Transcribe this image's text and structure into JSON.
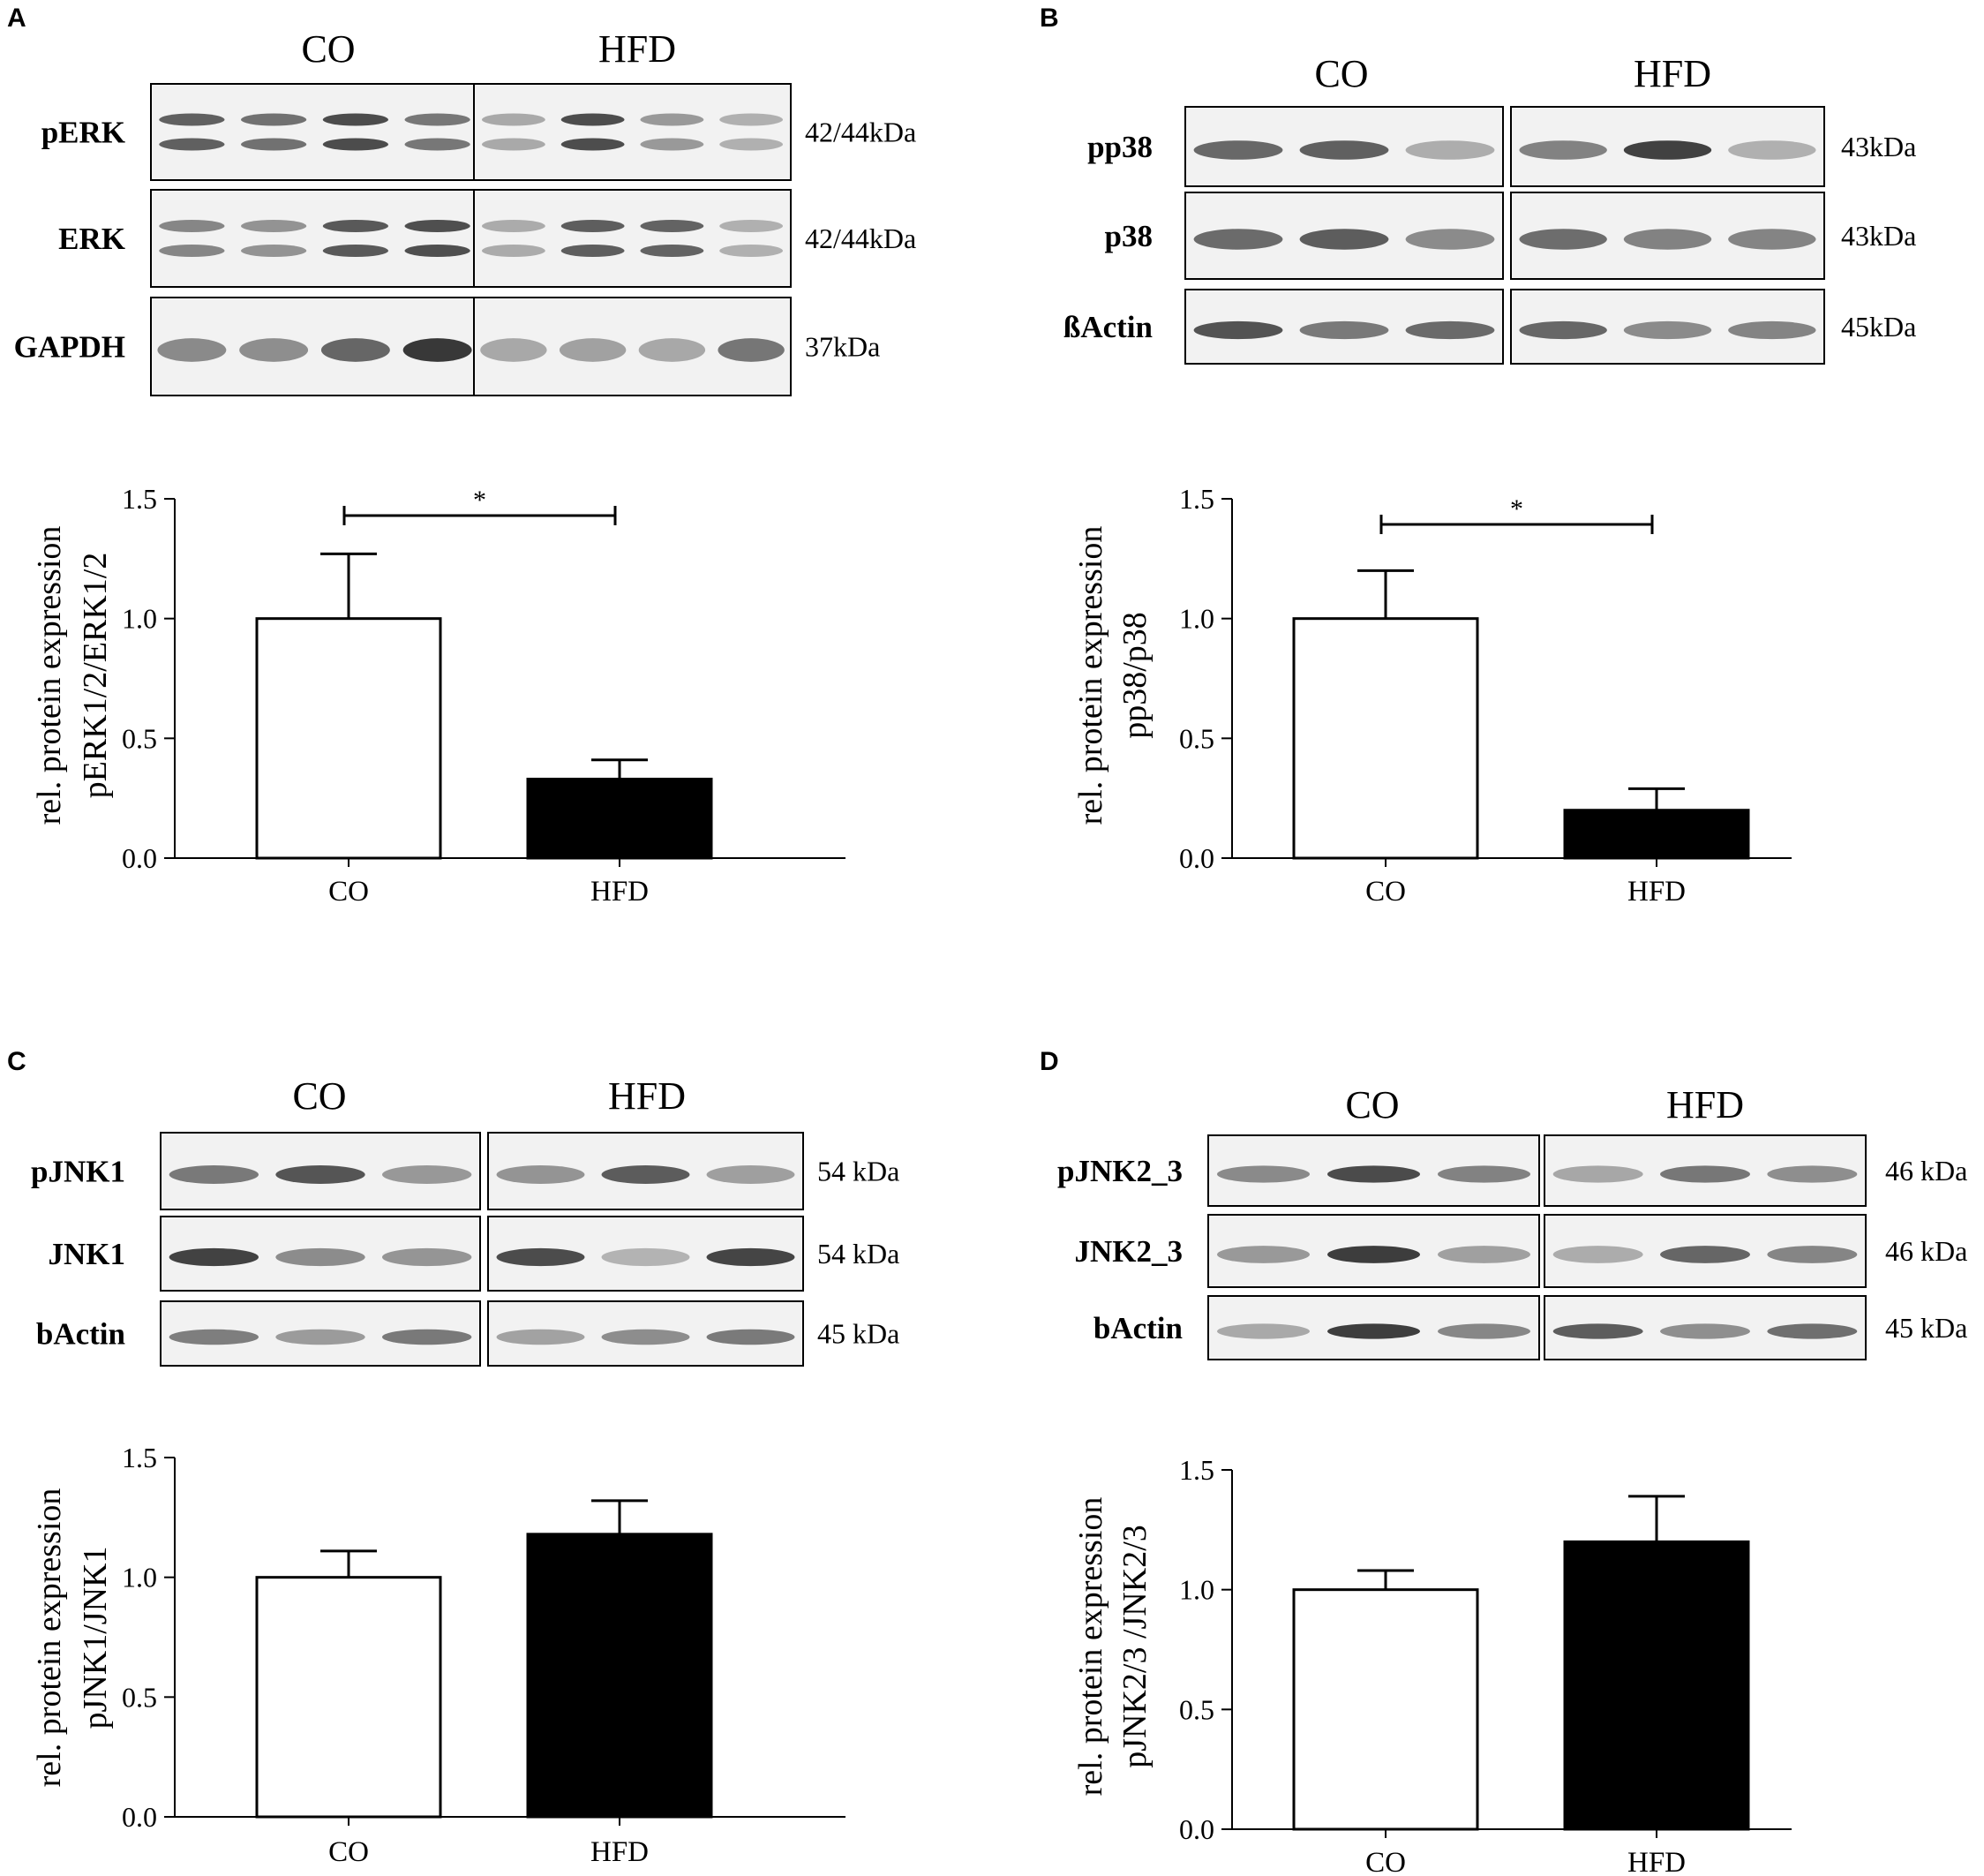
{
  "figure": {
    "panels": [
      {
        "letter": "A",
        "groups": [
          "CO",
          "HFD"
        ],
        "blot_rows": [
          {
            "label": "pERK",
            "kda": "42/44kDa"
          },
          {
            "label": "ERK",
            "kda": "42/44kDa"
          },
          {
            "label": "GAPDH",
            "kda": "37kDa"
          }
        ],
        "lanes_per_group": 4
      },
      {
        "letter": "B",
        "groups": [
          "CO",
          "HFD"
        ],
        "blot_rows": [
          {
            "label": "pp38",
            "kda": "43kDa"
          },
          {
            "label": "p38",
            "kda": "43kDa"
          },
          {
            "label": "ßActin",
            "kda": "45kDa"
          }
        ],
        "lanes_per_group": 3
      },
      {
        "letter": "C",
        "groups": [
          "CO",
          "HFD"
        ],
        "blot_rows": [
          {
            "label": "pJNK1",
            "kda": "54 kDa"
          },
          {
            "label": "JNK1",
            "kda": "54 kDa"
          },
          {
            "label": "bActin",
            "kda": "45 kDa"
          }
        ],
        "lanes_per_group": 3
      },
      {
        "letter": "D",
        "groups": [
          "CO",
          "HFD"
        ],
        "blot_rows": [
          {
            "label": "pJNK2_3",
            "kda": "46 kDa"
          },
          {
            "label": "JNK2_3",
            "kda": "46 kDa"
          },
          {
            "label": "bActin",
            "kda": "45 kDa"
          }
        ],
        "lanes_per_group": 3
      }
    ]
  },
  "chart_data": [
    {
      "type": "bar",
      "panel": "A",
      "categories": [
        "CO",
        "HFD"
      ],
      "values": [
        1.0,
        0.33
      ],
      "errors": [
        0.27,
        0.08
      ],
      "bar_colors": [
        "#ffffff",
        "#000000"
      ],
      "ylabel": [
        "rel. protein expression",
        "pERK1/2/ERK1/2"
      ],
      "ylim": [
        0,
        1.5
      ],
      "yticks": [
        "0.0",
        "0.5",
        "1.0",
        "1.5"
      ],
      "significance": {
        "pair": [
          "CO",
          "HFD"
        ],
        "label": "*"
      }
    },
    {
      "type": "bar",
      "panel": "B",
      "categories": [
        "CO",
        "HFD"
      ],
      "values": [
        1.0,
        0.2
      ],
      "errors": [
        0.2,
        0.09
      ],
      "bar_colors": [
        "#ffffff",
        "#000000"
      ],
      "ylabel": [
        "rel. protein expression",
        "pp38/p38"
      ],
      "ylim": [
        0,
        1.5
      ],
      "yticks": [
        "0.0",
        "0.5",
        "1.0",
        "1.5"
      ],
      "significance": {
        "pair": [
          "CO",
          "HFD"
        ],
        "label": "*"
      }
    },
    {
      "type": "bar",
      "panel": "C",
      "categories": [
        "CO",
        "HFD"
      ],
      "values": [
        1.0,
        1.18
      ],
      "errors": [
        0.11,
        0.14
      ],
      "bar_colors": [
        "#ffffff",
        "#000000"
      ],
      "ylabel": [
        "rel. protein expression",
        "pJNK1/JNK1"
      ],
      "ylim": [
        0,
        1.5
      ],
      "yticks": [
        "0.0",
        "0.5",
        "1.0",
        "1.5"
      ],
      "significance": null
    },
    {
      "type": "bar",
      "panel": "D",
      "categories": [
        "CO",
        "HFD"
      ],
      "values": [
        1.0,
        1.2
      ],
      "errors": [
        0.08,
        0.19
      ],
      "bar_colors": [
        "#ffffff",
        "#000000"
      ],
      "ylabel": [
        "rel. protein expression",
        "pJNK2/3 /JNK2/3"
      ],
      "ylim": [
        0,
        1.5
      ],
      "yticks": [
        "0.0",
        "0.5",
        "1.0",
        "1.5"
      ],
      "significance": null
    }
  ]
}
